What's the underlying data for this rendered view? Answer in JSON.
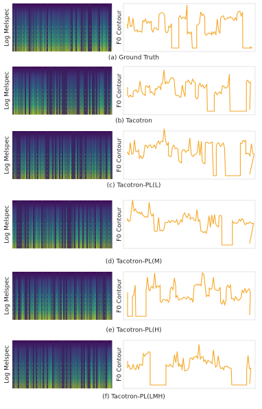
{
  "panels": [
    {
      "caption": "(a) Ground Truth",
      "spec_label": "Log Melspec",
      "f0_label": "F0 Contour"
    },
    {
      "caption": "(b) Tacotron",
      "spec_label": "Log Melspec",
      "f0_label": "F0 Contour"
    },
    {
      "caption": "(c) Tacotron-PL(L)",
      "spec_label": "Log Melspec",
      "f0_label": "F0 Contour"
    },
    {
      "caption": "(d) Tacotron-PL(M)",
      "spec_label": "Log Melspec",
      "f0_label": "F0 Contour"
    },
    {
      "caption": "(e) Tacotron-PL(H)",
      "spec_label": "Log Melspec",
      "f0_label": "F0 Contour"
    },
    {
      "caption": "(f) Tacotron-PL(LMH)",
      "spec_label": "Log Melspec",
      "f0_label": "F0 Contour"
    }
  ]
}
